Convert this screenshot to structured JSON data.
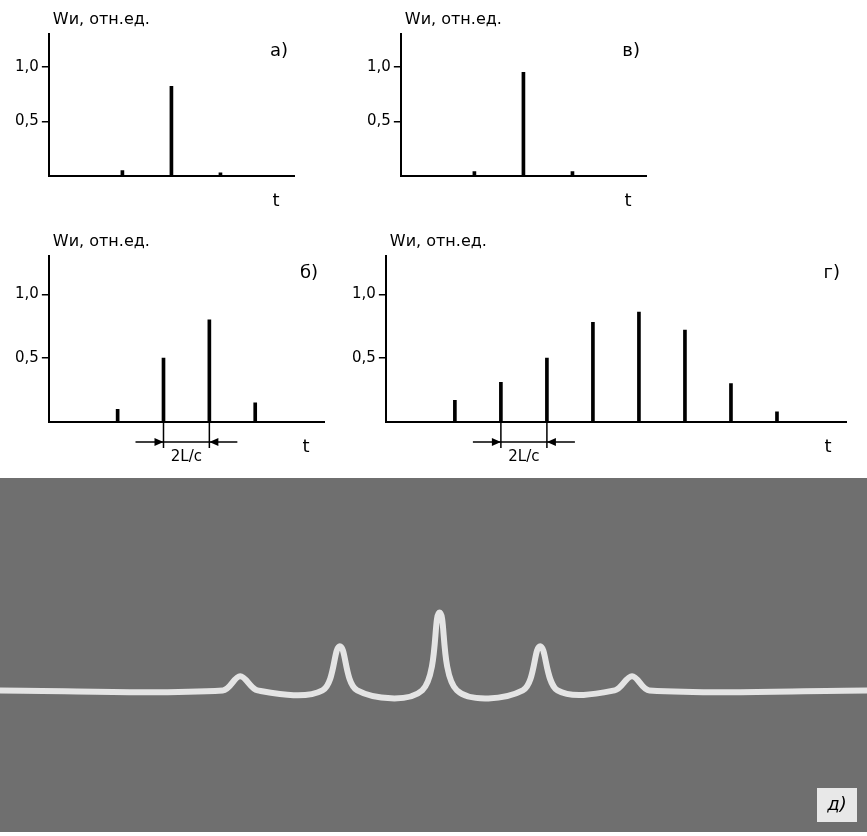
{
  "chart_data": [
    {
      "type": "bar",
      "title": "а)",
      "y_label": "Wи, отн.ед.",
      "x_label": "t",
      "categories": [
        null,
        null,
        null,
        null,
        null
      ],
      "values": [
        null,
        0.05,
        0.82,
        0.03,
        null
      ],
      "color": "#000000",
      "ylim": [
        0,
        1.3
      ],
      "yticks": [
        {
          "value": 0.5,
          "label": "0,5"
        },
        {
          "value": 1.0,
          "label": "1,0"
        }
      ],
      "grid": false,
      "tick_labels": "y"
    },
    {
      "type": "bar",
      "title": "б)",
      "y_label": "Wи, отн.ед.",
      "x_label": "t",
      "categories": [
        null,
        null,
        null,
        null,
        null,
        null
      ],
      "values": [
        null,
        0.1,
        0.5,
        0.8,
        0.15,
        null
      ],
      "color": "#000000",
      "ylim": [
        0,
        1.3
      ],
      "yticks": [
        {
          "value": 0.5,
          "label": "0,5"
        },
        {
          "value": 1.0,
          "label": "1,0"
        }
      ],
      "grid": false,
      "tick_labels": "y",
      "annotation": {
        "text": "2L/c",
        "between": [
          2,
          3
        ]
      }
    },
    {
      "type": "bar",
      "title": "в)",
      "y_label": "Wи, отн.ед.",
      "x_label": "t",
      "categories": [
        null,
        null,
        null,
        null,
        null
      ],
      "values": [
        null,
        0.04,
        0.95,
        0.04,
        null
      ],
      "color": "#000000",
      "ylim": [
        0,
        1.3
      ],
      "yticks": [
        {
          "value": 0.5,
          "label": "0,5"
        },
        {
          "value": 1.0,
          "label": "1,0"
        }
      ],
      "grid": false,
      "tick_labels": "y"
    },
    {
      "type": "bar",
      "title": "г)",
      "y_label": "Wи, отн.ед.",
      "x_label": "t",
      "categories": [
        null,
        null,
        null,
        null,
        null,
        null,
        null,
        null,
        null,
        null
      ],
      "values": [
        null,
        0.17,
        0.31,
        0.5,
        0.78,
        0.86,
        0.72,
        0.3,
        0.08,
        null
      ],
      "color": "#000000",
      "ylim": [
        0,
        1.3
      ],
      "yticks": [
        {
          "value": 0.5,
          "label": "0,5"
        },
        {
          "value": 1.0,
          "label": "1,0"
        }
      ],
      "grid": false,
      "tick_labels": "y",
      "annotation": {
        "text": "2L/c",
        "between": [
          2,
          3
        ]
      }
    },
    {
      "type": "line",
      "title": "д)",
      "x": [
        0,
        25.7,
        27.7,
        29.7,
        37.2,
        39.2,
        41.2,
        48.7,
        50.7,
        52.7,
        60.3,
        62.3,
        64.3,
        70.9,
        72.9,
        74.9,
        100
      ],
      "values": [
        0,
        0,
        0.08,
        0,
        0,
        0.25,
        0,
        0,
        0.44,
        0,
        0,
        0.25,
        0,
        0,
        0.08,
        0,
        0
      ],
      "color": "#e4e4e4",
      "xlim": [
        0,
        100
      ],
      "ylim": [
        -0.8,
        1.2
      ],
      "xticks": [],
      "yticks": [],
      "grid": false,
      "tick_labels": false
    }
  ]
}
